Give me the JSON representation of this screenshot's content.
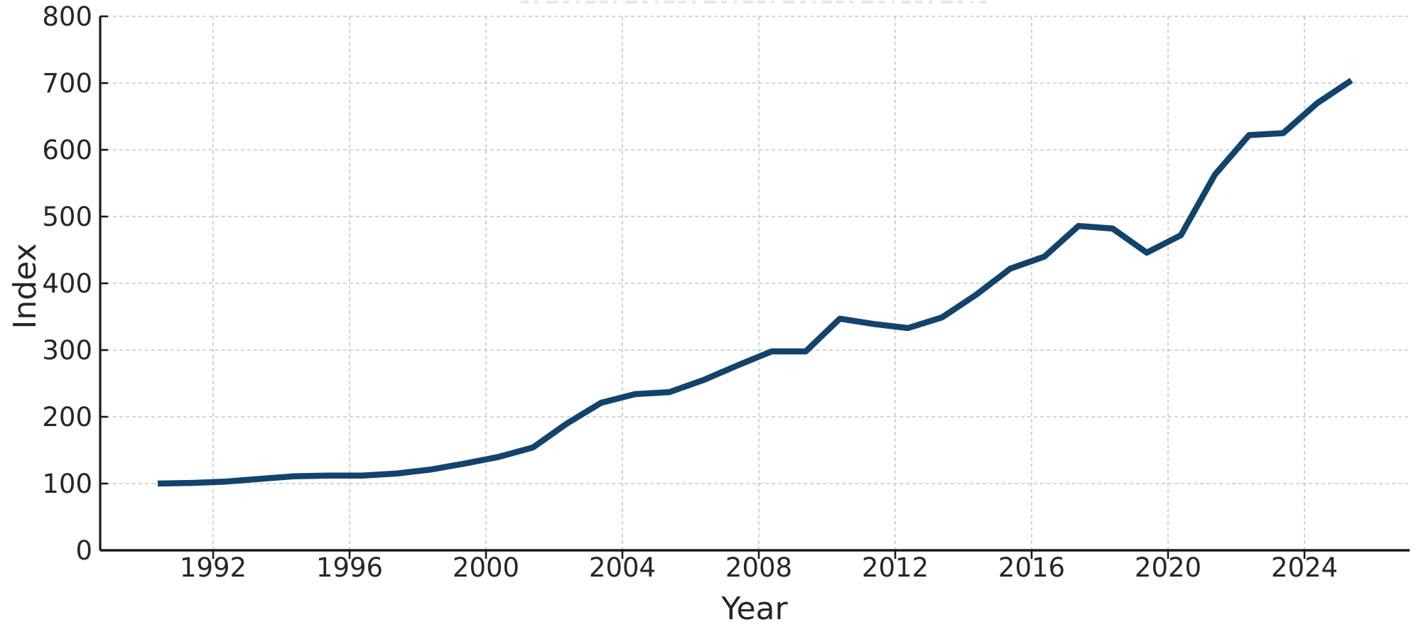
{
  "chart_data": {
    "type": "line",
    "title": "",
    "notes": "only faint bottom pixels of a cropped-off title are visible along the very top edge",
    "xlabel": "Year",
    "ylabel": "Index",
    "years": [
      1990,
      1991,
      1992,
      1993,
      1994,
      1995,
      1996,
      1997,
      1998,
      1999,
      2000,
      2001,
      2002,
      2003,
      2004,
      2005,
      2006,
      2007,
      2008,
      2009,
      2010,
      2011,
      2012,
      2013,
      2014,
      2015,
      2016,
      2017,
      2018,
      2019,
      2020,
      2021,
      2022,
      2023,
      2024,
      2025
    ],
    "series": [
      {
        "name": "Index",
        "values": [
          100,
          101,
          103,
          107,
          111,
          112,
          112,
          115,
          121,
          130,
          140,
          154,
          190,
          221,
          234,
          237,
          255,
          277,
          298,
          298,
          347,
          339,
          333,
          349,
          383,
          422,
          440,
          486,
          482,
          446,
          472,
          563,
          622,
          625,
          670,
          704
        ]
      }
    ],
    "xticks": [
      1992,
      1996,
      2000,
      2004,
      2008,
      2012,
      2016,
      2020,
      2024
    ],
    "yticks": [
      0,
      100,
      200,
      300,
      400,
      500,
      600,
      700,
      800
    ],
    "xlim": [
      1988.7,
      2027.1
    ],
    "ylim": [
      0,
      800
    ],
    "grid": "dashed",
    "legend": "none",
    "colors": {
      "line": "#12436D",
      "axis": "#1a1a1a",
      "text": "#262626",
      "grid": "#c8c8c8",
      "title_remnant": "#e9e7e2",
      "background": "#ffffff"
    }
  }
}
